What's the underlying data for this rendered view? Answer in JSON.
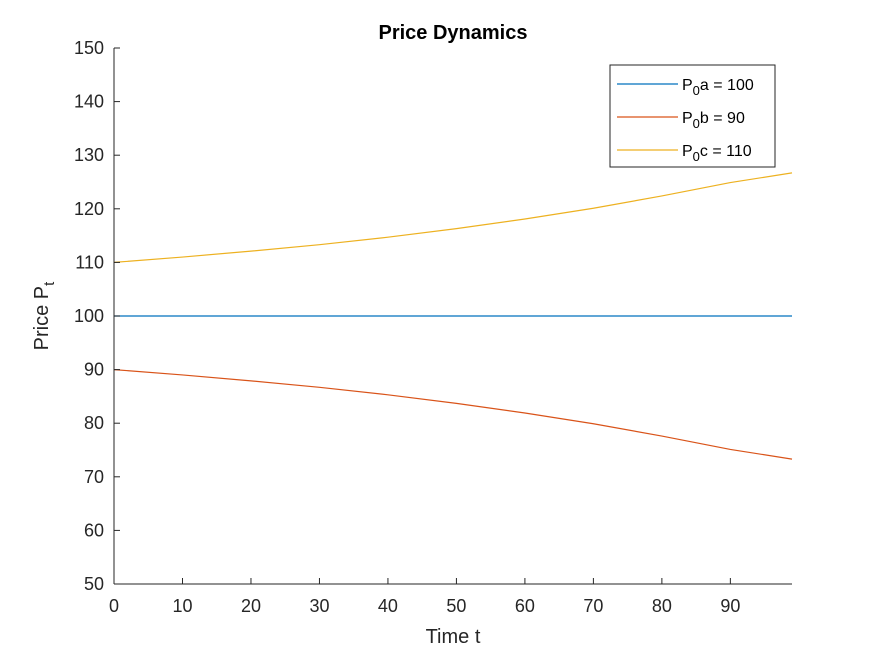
{
  "chart_data": {
    "type": "line",
    "title": "Price Dynamics",
    "xlabel": "Time t",
    "ylabel": "Price P",
    "ylabel_sub": "t",
    "xlim": [
      0,
      99
    ],
    "ylim": [
      50,
      150
    ],
    "xticks": [
      0,
      10,
      20,
      30,
      40,
      50,
      60,
      70,
      80,
      90
    ],
    "yticks": [
      50,
      60,
      70,
      80,
      90,
      100,
      110,
      120,
      130,
      140,
      150
    ],
    "grid": false,
    "legend_position": "top-right",
    "x": [
      0,
      10,
      20,
      30,
      40,
      50,
      60,
      70,
      80,
      90,
      99
    ],
    "series": [
      {
        "name": "P0a = 100",
        "legend_main": "P",
        "legend_sub": "0",
        "legend_rest": "a = 100",
        "color": "#0072BD",
        "values": [
          100,
          100,
          100,
          100,
          100,
          100,
          100,
          100,
          100,
          100,
          100
        ]
      },
      {
        "name": "P0b = 90",
        "legend_main": "P",
        "legend_sub": "0",
        "legend_rest": "b = 90",
        "color": "#D95319",
        "values": [
          90,
          89.0,
          87.9,
          86.7,
          85.3,
          83.7,
          81.9,
          79.9,
          77.6,
          75.1,
          73.3
        ]
      },
      {
        "name": "P0c = 110",
        "legend_main": "P",
        "legend_sub": "0",
        "legend_rest": "c = 110",
        "color": "#EDB120",
        "values": [
          110,
          111.0,
          112.1,
          113.3,
          114.7,
          116.3,
          118.1,
          120.1,
          122.4,
          124.9,
          126.7
        ]
      }
    ]
  }
}
